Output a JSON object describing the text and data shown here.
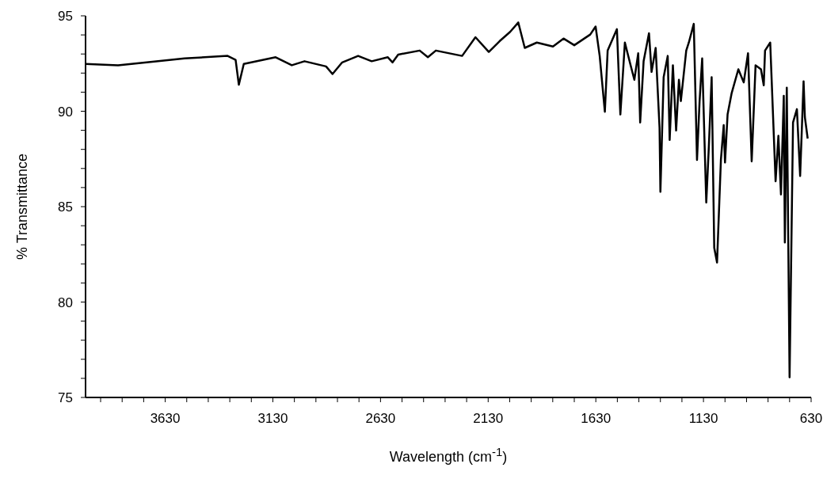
{
  "chart_data": {
    "type": "line",
    "xlabel": "Wavelength (cm$^{-1}$)",
    "ylabel": "% Transmittance",
    "marker": "none",
    "line_style": "solid",
    "x": [
      4000,
      3849,
      3663,
      3540,
      3340,
      3303,
      3288,
      3265,
      3117,
      3042,
      2983,
      2883,
      2853,
      2808,
      2734,
      2671,
      2596,
      2574,
      2548,
      2448,
      2410,
      2373,
      2251,
      2189,
      2127,
      2077,
      2028,
      1990,
      1960,
      1904,
      1829,
      1780,
      1730,
      1656,
      1631,
      1612,
      1588,
      1575,
      1532,
      1516,
      1495,
      1470,
      1451,
      1433,
      1424,
      1408,
      1383,
      1371,
      1352,
      1334,
      1330,
      1315,
      1296,
      1287,
      1272,
      1257,
      1244,
      1235,
      1210,
      1198,
      1175,
      1160,
      1148,
      1136,
      1117,
      1105,
      1092,
      1080,
      1067,
      1049,
      1036,
      1030,
      1018,
      999,
      968,
      943,
      923,
      906,
      888,
      863,
      850,
      844,
      820,
      795,
      782,
      770,
      757,
      752,
      743,
      730,
      714,
      696,
      681,
      665,
      659,
      646
    ],
    "series": [
      {
        "color": "#000000",
        "values": [
          92.48,
          92.41,
          92.62,
          92.77,
          92.9,
          92.69,
          91.39,
          92.48,
          92.83,
          92.41,
          92.62,
          92.35,
          91.95,
          92.56,
          92.9,
          92.62,
          92.83,
          92.56,
          92.97,
          93.18,
          92.83,
          93.18,
          92.9,
          93.88,
          93.11,
          93.67,
          94.16,
          94.65,
          93.32,
          93.6,
          93.39,
          93.81,
          93.46,
          94.02,
          94.44,
          92.9,
          89.97,
          93.18,
          94.3,
          89.83,
          93.6,
          92.48,
          91.65,
          93.04,
          89.41,
          92.62,
          94.09,
          92.06,
          93.32,
          89.13,
          85.78,
          91.78,
          92.9,
          88.5,
          92.41,
          88.99,
          91.65,
          90.53,
          93.18,
          93.6,
          94.58,
          87.45,
          90.53,
          92.77,
          85.22,
          88.15,
          91.78,
          82.84,
          82.07,
          87.45,
          89.27,
          87.31,
          89.83,
          90.95,
          92.2,
          91.51,
          93.04,
          87.38,
          92.41,
          92.2,
          91.36,
          93.18,
          93.6,
          86.33,
          88.71,
          85.64,
          90.81,
          83.12,
          91.23,
          76.06,
          89.41,
          90.11,
          86.61,
          91.57,
          89.69,
          88.57
        ]
      }
    ],
    "xlim": [
      4000,
      630
    ],
    "xticks": [
      630,
      {
        "value": 730,
        "label": null
      },
      {
        "value": 830,
        "label": null
      },
      {
        "value": 930,
        "label": null
      },
      {
        "value": 1030,
        "label": null
      },
      1130,
      {
        "value": 1230,
        "label": null
      },
      {
        "value": 1330,
        "label": null
      },
      {
        "value": 1430,
        "label": null
      },
      {
        "value": 1530,
        "label": null
      },
      1630,
      {
        "value": 1730,
        "label": null
      },
      {
        "value": 1830,
        "label": null
      },
      {
        "value": 1930,
        "label": null
      },
      {
        "value": 2030,
        "label": null
      },
      2130,
      {
        "value": 2230,
        "label": null
      },
      {
        "value": 2330,
        "label": null
      },
      {
        "value": 2430,
        "label": null
      },
      {
        "value": 2530,
        "label": null
      },
      2630,
      {
        "value": 2730,
        "label": null
      },
      {
        "value": 2830,
        "label": null
      },
      {
        "value": 2930,
        "label": null
      },
      {
        "value": 3030,
        "label": null
      },
      3130,
      {
        "value": 3230,
        "label": null
      },
      {
        "value": 3330,
        "label": null
      },
      {
        "value": 3430,
        "label": null
      },
      {
        "value": 3530,
        "label": null
      },
      3630,
      {
        "value": 3730,
        "label": null
      },
      {
        "value": 3830,
        "label": null
      },
      {
        "value": 3930,
        "label": null
      }
    ],
    "ylim": [
      75,
      95
    ],
    "yticks": [
      75,
      {
        "value": 76,
        "label": null
      },
      {
        "value": 77,
        "label": null
      },
      {
        "value": 78,
        "label": null
      },
      {
        "value": 79,
        "label": null
      },
      80,
      {
        "value": 81,
        "label": null
      },
      {
        "value": 82,
        "label": null
      },
      {
        "value": 83,
        "label": null
      },
      {
        "value": 84,
        "label": null
      },
      85,
      {
        "value": 86,
        "label": null
      },
      {
        "value": 87,
        "label": null
      },
      {
        "value": 88,
        "label": null
      },
      {
        "value": 89,
        "label": null
      },
      90,
      {
        "value": 91,
        "label": null
      },
      {
        "value": 92,
        "label": null
      },
      {
        "value": 93,
        "label": null
      },
      {
        "value": 94,
        "label": null
      },
      95
    ]
  }
}
